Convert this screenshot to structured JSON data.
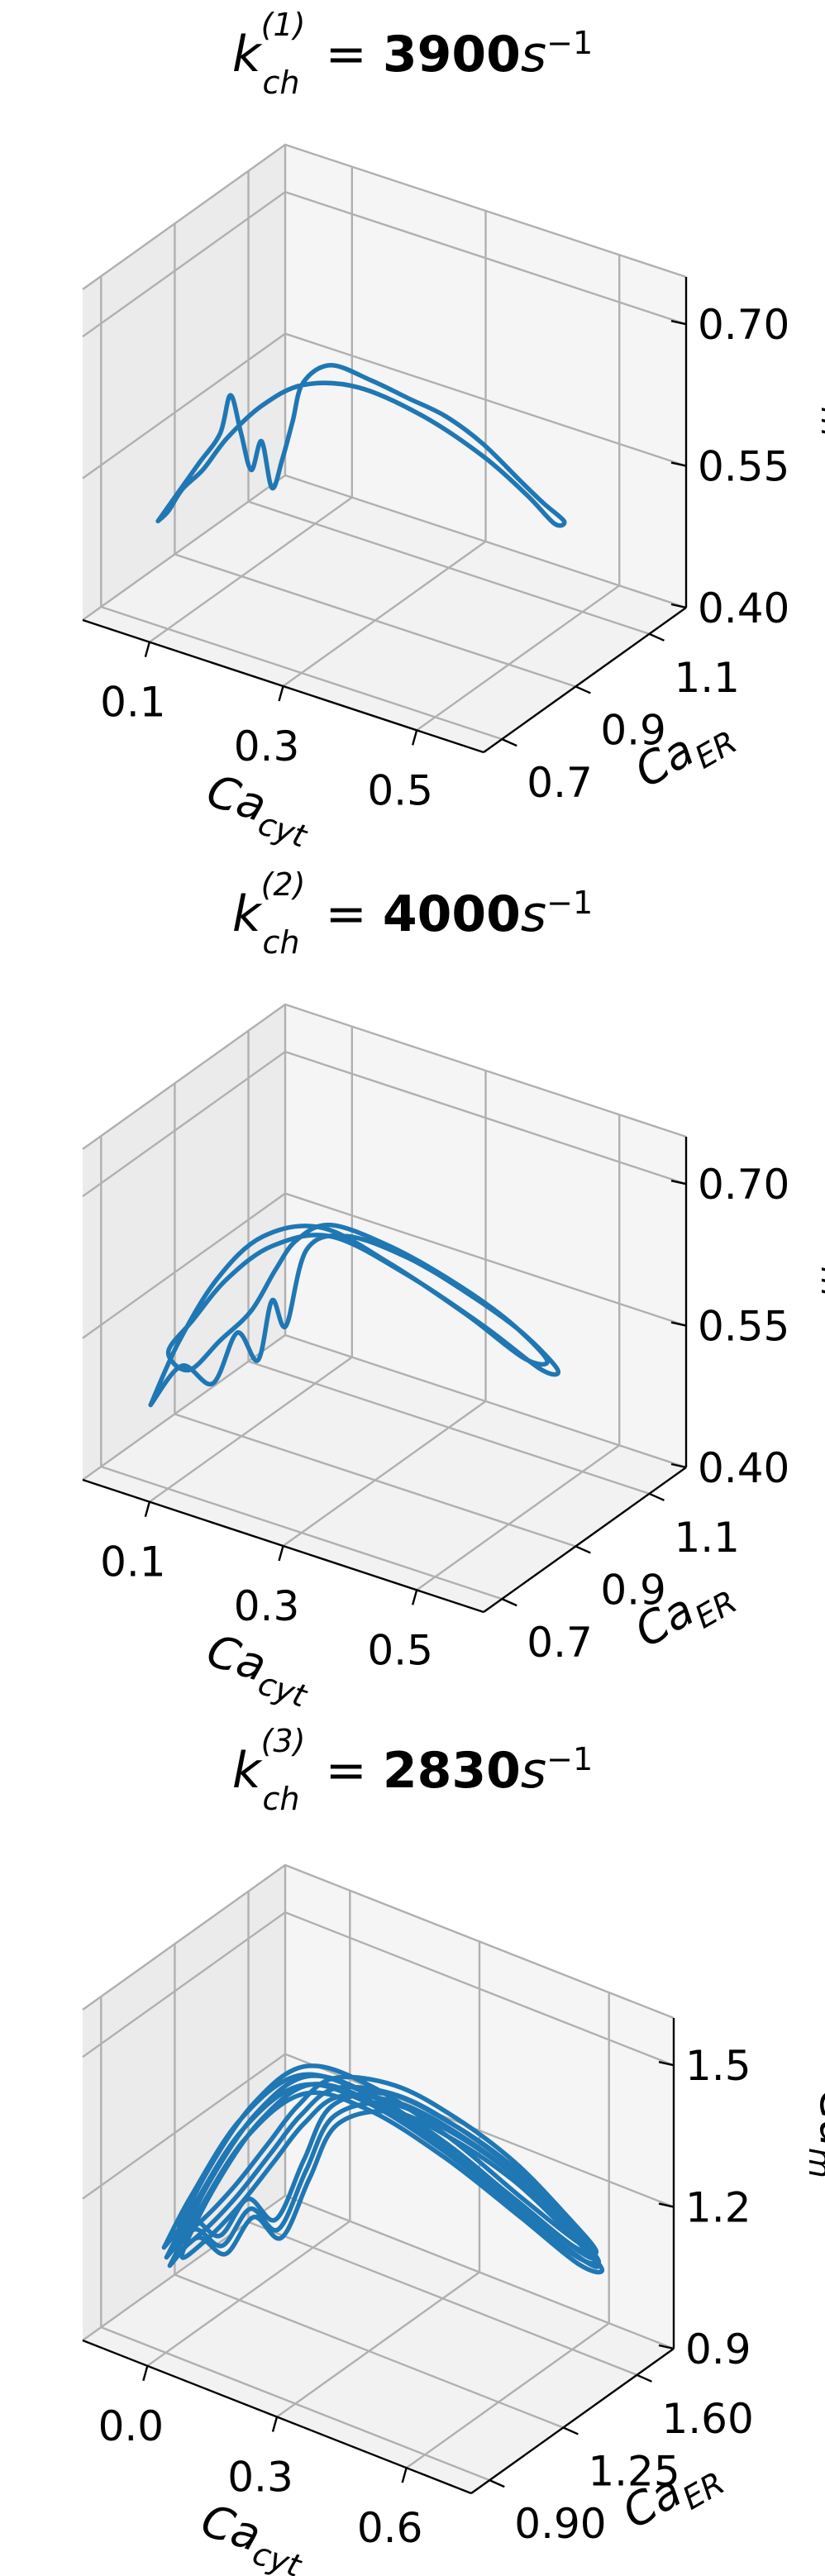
{
  "figure": {
    "title_prefix": "k",
    "title_eq": " = ",
    "unit_base": "s",
    "unit_exp": "−1"
  },
  "chart_data": [
    {
      "type": "line",
      "projection": "3d",
      "title": "k_ch^(1) = 3900 s^-1",
      "title_sub": "ch",
      "title_sup": "(1)",
      "title_value": "3900",
      "xlabel": "Ca_cyt",
      "ylabel": "Ca_ER",
      "zlabel": "Ca_m",
      "xticks": [
        "0.1",
        "0.3",
        "0.5"
      ],
      "yticks": [
        "0.7",
        "0.9",
        "1.1"
      ],
      "zticks": [
        "0.40",
        "0.55",
        "0.70"
      ],
      "xlim": [
        0.0,
        0.6
      ],
      "ylim": [
        0.65,
        1.2
      ],
      "zlim": [
        0.4,
        0.75
      ],
      "series": [
        {
          "x": [
            0.03,
            0.05,
            0.07,
            0.09,
            0.1,
            0.11,
            0.12,
            0.13,
            0.14,
            0.15,
            0.16,
            0.17,
            0.2,
            0.25,
            0.3,
            0.35,
            0.4,
            0.45,
            0.48,
            0.5,
            0.48,
            0.44,
            0.38,
            0.3,
            0.22,
            0.16,
            0.12,
            0.09,
            0.07,
            0.05,
            0.04,
            0.03
          ],
          "y": [
            0.8,
            0.82,
            0.84,
            0.86,
            0.87,
            0.88,
            0.89,
            0.9,
            0.91,
            0.92,
            0.93,
            0.94,
            0.96,
            0.98,
            0.99,
            1.0,
            1.01,
            1.02,
            1.03,
            1.05,
            1.06,
            1.06,
            1.05,
            1.03,
            1.0,
            0.96,
            0.92,
            0.88,
            0.85,
            0.83,
            0.81,
            0.8
          ],
          "z": [
            0.47,
            0.5,
            0.53,
            0.56,
            0.6,
            0.56,
            0.52,
            0.55,
            0.5,
            0.53,
            0.57,
            0.61,
            0.63,
            0.62,
            0.61,
            0.6,
            0.58,
            0.55,
            0.53,
            0.51,
            0.5,
            0.52,
            0.55,
            0.58,
            0.6,
            0.6,
            0.58,
            0.55,
            0.52,
            0.5,
            0.48,
            0.47
          ]
        }
      ]
    },
    {
      "type": "line",
      "projection": "3d",
      "title": "k_ch^(2) = 4000 s^-1",
      "title_sub": "ch",
      "title_sup": "(2)",
      "title_value": "4000",
      "xlabel": "Ca_cyt",
      "ylabel": "Ca_ER",
      "zlabel": "Ca_m",
      "xticks": [
        "0.1",
        "0.3",
        "0.5"
      ],
      "yticks": [
        "0.7",
        "0.9",
        "1.1"
      ],
      "zticks": [
        "0.40",
        "0.55",
        "0.70"
      ],
      "xlim": [
        0.0,
        0.6
      ],
      "ylim": [
        0.65,
        1.2
      ],
      "zlim": [
        0.4,
        0.75
      ],
      "series": [
        {
          "x": [
            0.03,
            0.06,
            0.09,
            0.11,
            0.13,
            0.14,
            0.15,
            0.17,
            0.22,
            0.3,
            0.38,
            0.45,
            0.49,
            0.46,
            0.38,
            0.28,
            0.19,
            0.13,
            0.09,
            0.06,
            0.04,
            0.06,
            0.09,
            0.12,
            0.14,
            0.16,
            0.2,
            0.28,
            0.37,
            0.44,
            0.48,
            0.44,
            0.36,
            0.26,
            0.18,
            0.12,
            0.08,
            0.05,
            0.03
          ],
          "y": [
            0.78,
            0.81,
            0.84,
            0.87,
            0.89,
            0.91,
            0.93,
            0.95,
            0.97,
            0.99,
            1.0,
            1.02,
            1.05,
            1.06,
            1.05,
            1.02,
            0.98,
            0.93,
            0.88,
            0.84,
            0.81,
            0.83,
            0.86,
            0.89,
            0.92,
            0.94,
            0.96,
            0.98,
            0.99,
            1.01,
            1.04,
            1.05,
            1.04,
            1.01,
            0.97,
            0.92,
            0.87,
            0.82,
            0.78
          ],
          "z": [
            0.45,
            0.49,
            0.47,
            0.52,
            0.49,
            0.55,
            0.52,
            0.6,
            0.62,
            0.61,
            0.59,
            0.56,
            0.52,
            0.51,
            0.54,
            0.58,
            0.61,
            0.6,
            0.57,
            0.53,
            0.5,
            0.48,
            0.51,
            0.54,
            0.58,
            0.61,
            0.63,
            0.62,
            0.6,
            0.57,
            0.53,
            0.52,
            0.55,
            0.59,
            0.62,
            0.61,
            0.57,
            0.51,
            0.45
          ]
        }
      ]
    },
    {
      "type": "line",
      "projection": "3d",
      "title": "k_ch^(3) = 2830 s^-1",
      "title_sub": "ch",
      "title_sup": "(3)",
      "title_value": "2830",
      "xlabel": "Ca_cyt",
      "ylabel": "Ca_ER",
      "zlabel": "Ca_m",
      "xticks": [
        "0.0",
        "0.3",
        "0.6"
      ],
      "yticks": [
        "0.90",
        "1.25",
        "1.60"
      ],
      "zticks": [
        "0.9",
        "1.2",
        "1.5"
      ],
      "xlim": [
        -0.05,
        0.65
      ],
      "ylim": [
        0.85,
        1.75
      ],
      "zlim": [
        0.85,
        1.6
      ],
      "series": [
        {
          "x": [
            0.02,
            0.05,
            0.08,
            0.11,
            0.14,
            0.17,
            0.2,
            0.28,
            0.38,
            0.48,
            0.56,
            0.6,
            0.56,
            0.46,
            0.34,
            0.22,
            0.14,
            0.09,
            0.05,
            0.03,
            0.05,
            0.09,
            0.13,
            0.16,
            0.2,
            0.29,
            0.39,
            0.49,
            0.57,
            0.6,
            0.55,
            0.45,
            0.33,
            0.22,
            0.14,
            0.08,
            0.04,
            0.02
          ],
          "y": [
            1.05,
            1.1,
            1.15,
            1.2,
            1.25,
            1.3,
            1.35,
            1.4,
            1.42,
            1.44,
            1.47,
            1.52,
            1.55,
            1.55,
            1.52,
            1.46,
            1.38,
            1.28,
            1.18,
            1.08,
            1.12,
            1.18,
            1.24,
            1.3,
            1.36,
            1.41,
            1.43,
            1.45,
            1.49,
            1.54,
            1.56,
            1.55,
            1.51,
            1.44,
            1.35,
            1.24,
            1.12,
            1.05
          ],
          "z": [
            1.0,
            1.06,
            1.02,
            1.1,
            1.05,
            1.18,
            1.3,
            1.35,
            1.33,
            1.28,
            1.2,
            1.12,
            1.1,
            1.15,
            1.24,
            1.32,
            1.35,
            1.28,
            1.15,
            1.02,
            1.04,
            1.12,
            1.22,
            1.3,
            1.36,
            1.37,
            1.34,
            1.28,
            1.18,
            1.1,
            1.08,
            1.14,
            1.23,
            1.31,
            1.34,
            1.25,
            1.1,
            1.0
          ]
        }
      ]
    }
  ]
}
